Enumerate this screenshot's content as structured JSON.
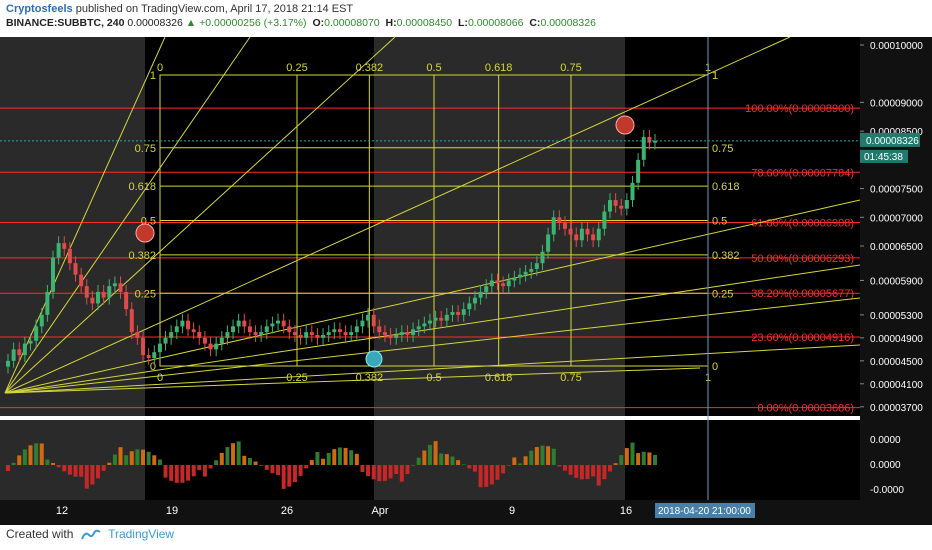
{
  "header": {
    "author": "Cryptosfeels",
    "published": "published on TradingView.com, April 17, 2018 21:14 EST",
    "symbol": "BINANCE:SUBBTC, 240",
    "last": "0.00008326",
    "change": "+0.00000256 (+3.17%)",
    "open_label": "O:",
    "open": "0.00008070",
    "high_label": "H:",
    "high": "0.00008450",
    "low_label": "L:",
    "low": "0.00008066",
    "close_label": "C:",
    "close": "0.00008326"
  },
  "footer": {
    "created_with": "Created with",
    "brand": "TradingView"
  },
  "colors": {
    "background": "#000000",
    "session_shade": "#2a2a2a",
    "bull": "#3cb371",
    "bear": "#e04a4a",
    "fib": "#ff2a2a",
    "gann": "#d6d63a",
    "axis_text": "#ffffff",
    "volume_up": "#2e7d32",
    "volume_down": "#d06a10",
    "volume_neg": "#c62828"
  },
  "chart_data": {
    "type": "candlestick",
    "symbol": "BINANCE:SUBBTC",
    "timeframe": "240",
    "x_ticks": [
      "12",
      "19",
      "26",
      "Apr",
      "9",
      "16"
    ],
    "crosshair_date": "2018-04-20 21:00:00",
    "y_ticks": [
      "0.00010000",
      "0.00009000",
      "0.00008500",
      "0.00007500",
      "0.00007000",
      "0.00006500",
      "0.00005900",
      "0.00005300",
      "0.00004900",
      "0.00004500",
      "0.00004100",
      "0.00003700"
    ],
    "last_price_label": "0.00008326",
    "countdown_label": "01:45:38",
    "close_series": [
      4.5,
      4.7,
      4.6,
      4.8,
      4.85,
      5.1,
      5.3,
      5.7,
      6.3,
      6.55,
      6.45,
      6.2,
      6.0,
      5.8,
      5.6,
      5.5,
      5.7,
      5.6,
      5.8,
      5.85,
      5.7,
      5.4,
      5.0,
      4.9,
      4.6,
      4.55,
      4.65,
      4.8,
      4.9,
      5.0,
      5.1,
      5.2,
      5.05,
      5.0,
      4.9,
      4.8,
      4.7,
      4.8,
      4.9,
      5.0,
      5.1,
      5.2,
      5.1,
      5.0,
      4.95,
      5.0,
      5.1,
      5.15,
      5.2,
      5.1,
      5.0,
      4.95,
      4.9,
      5.0,
      4.95,
      4.9,
      4.95,
      5.0,
      5.05,
      5.0,
      4.95,
      5.0,
      5.1,
      5.2,
      5.3,
      5.1,
      5.0,
      4.95,
      4.9,
      4.95,
      5.0,
      4.95,
      5.05,
      5.1,
      5.15,
      5.2,
      5.25,
      5.2,
      5.3,
      5.35,
      5.3,
      5.4,
      5.5,
      5.6,
      5.7,
      5.8,
      5.9,
      5.85,
      5.8,
      5.9,
      5.95,
      6.0,
      6.05,
      6.1,
      6.2,
      6.4,
      6.7,
      7.0,
      6.9,
      6.8,
      6.7,
      6.6,
      6.8,
      6.7,
      6.6,
      6.8,
      7.1,
      7.3,
      7.2,
      7.15,
      7.3,
      7.6,
      8.0,
      8.4,
      8.3,
      8.33
    ],
    "fib_levels": [
      {
        "label": "100.00%(0.00008900)"
      },
      {
        "label": "78.60%(0.00007784)"
      },
      {
        "label": "61.80%(0.00006908)"
      },
      {
        "label": "50.00%(0.00006293)"
      },
      {
        "label": "38.20%(0.00005677)"
      },
      {
        "label": "23.60%(0.00004916)"
      },
      {
        "label": "0.00%(0.00003686)"
      }
    ],
    "gann_box": {
      "top_labels": [
        "0",
        "0.25",
        "0.382",
        "0.5",
        "0.618",
        "0.75",
        "1"
      ],
      "bottom_labels": [
        "0",
        "0.25",
        "0.382",
        "0.5",
        "0.618",
        "0.75",
        "1"
      ],
      "left_labels": [
        "1",
        "0.75",
        "0.618",
        "0.5",
        "0.382",
        "0.25",
        "0"
      ],
      "right_labels": [
        "1",
        "0.75",
        "0.618",
        "0.5",
        "0.382",
        "0.25",
        "0"
      ]
    },
    "volume_y_ticks": [
      "0.0000",
      "0.0000",
      "-0.0000"
    ]
  }
}
